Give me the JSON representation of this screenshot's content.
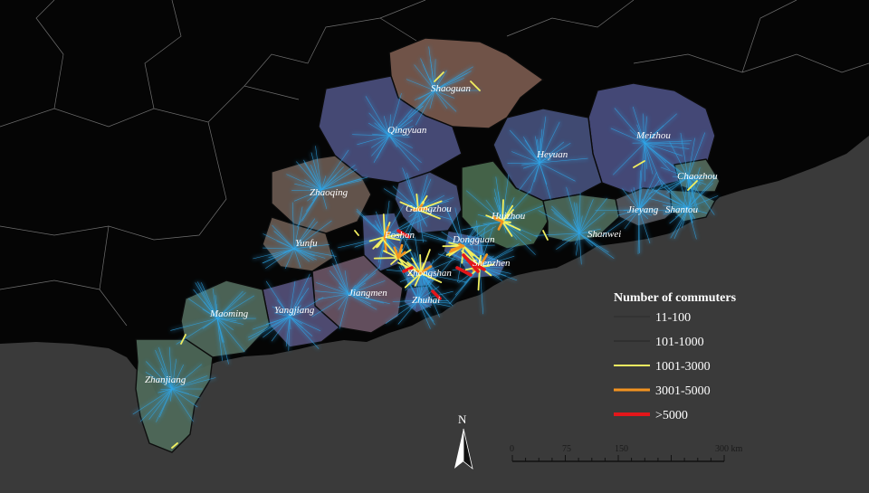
{
  "map": {
    "colors": {
      "sea": "#3a3a3a",
      "land_outside": "#050505",
      "province_border": "#0b0b0b",
      "flow_low": "#2fa6e8",
      "flow_1001_3000": "#f2f060",
      "flow_3001_5000": "#f29320",
      "flow_over_5000": "#e3161a"
    },
    "cities": [
      {
        "name": "Shaoguan",
        "fill": "#7a5a4e"
      },
      {
        "name": "Qingyuan",
        "fill": "#4b4f7e"
      },
      {
        "name": "Meizhou",
        "fill": "#4a4e80"
      },
      {
        "name": "Heyuan",
        "fill": "#45507c"
      },
      {
        "name": "Chaozhou",
        "fill": "#556a5c"
      },
      {
        "name": "Zhaoqing",
        "fill": "#6a5a52"
      },
      {
        "name": "Guangzhou",
        "fill": "#4a507a"
      },
      {
        "name": "Huizhou",
        "fill": "#4a6a4e"
      },
      {
        "name": "Jieyang",
        "fill": "#56585e"
      },
      {
        "name": "Shantou",
        "fill": "#4e6a60"
      },
      {
        "name": "Shanwei",
        "fill": "#4e6a5a"
      },
      {
        "name": "Yunfu",
        "fill": "#6a5a50"
      },
      {
        "name": "Foshan",
        "fill": "#4b5280"
      },
      {
        "name": "Dongguan",
        "fill": "#4b5280"
      },
      {
        "name": "Shenzhen",
        "fill": "#4b5280"
      },
      {
        "name": "Zhongshan",
        "fill": "#4b5280"
      },
      {
        "name": "Zhuhai",
        "fill": "#4b5280"
      },
      {
        "name": "Jiangmen",
        "fill": "#6a5565"
      },
      {
        "name": "Yangjiang",
        "fill": "#55507a"
      },
      {
        "name": "Maoming",
        "fill": "#526a5c"
      },
      {
        "name": "Zhanjiang",
        "fill": "#4f6a5a"
      }
    ],
    "city_labels": [
      "Shaoguan",
      "Qingyuan",
      "Meizhou",
      "Heyuan",
      "Chaozhou",
      "Zhaoqing",
      "Guangzhou",
      "Huizhou",
      "Jieyang",
      "Shantou",
      "Shanwei",
      "Yunfu",
      "Foshan",
      "Dongguan",
      "Shenzhen",
      "Zhongshan",
      "Zhuhai",
      "Jiangmen",
      "Yangjiang",
      "Maoming",
      "Zhanjiang"
    ]
  },
  "legend": {
    "title": "Number of commuters",
    "items": [
      {
        "label": "11-100",
        "color": "#1e1e1e"
      },
      {
        "label": "101-1000",
        "color": "#2a2a2a"
      },
      {
        "label": "1001-3000",
        "color": "#f2f060"
      },
      {
        "label": "3001-5000",
        "color": "#f29320"
      },
      {
        "label": ">5000",
        "color": "#e3161a"
      }
    ]
  },
  "north_arrow": {
    "label": "N"
  },
  "scale_bar": {
    "ticks": [
      "0",
      "75",
      "150",
      "300 km"
    ]
  }
}
